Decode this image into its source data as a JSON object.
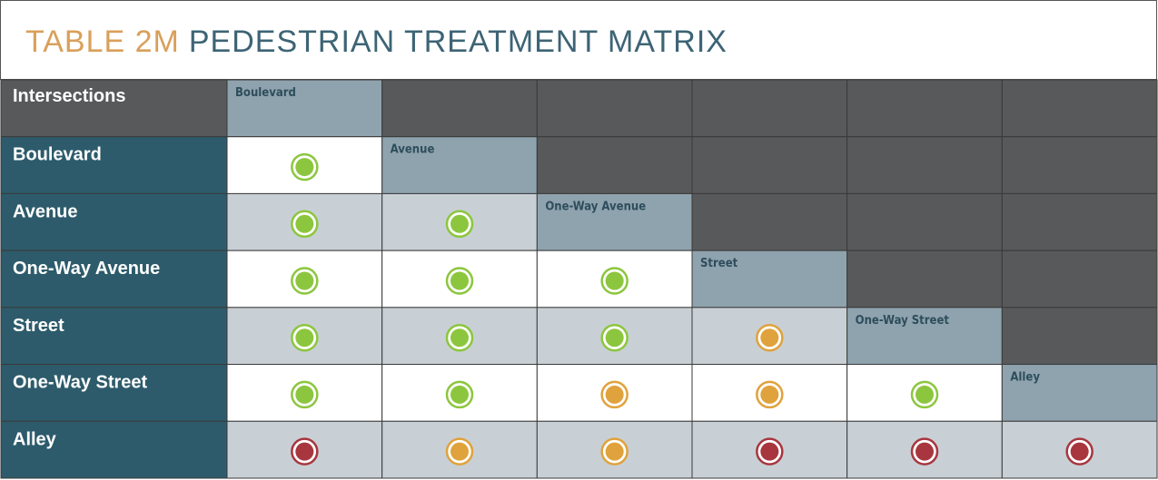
{
  "title": {
    "label": "TABLE 2M",
    "text": "PEDESTRIAN TREATMENT MATRIX"
  },
  "table": {
    "corner": "Intersections",
    "columns": [
      "Boulevard",
      "Avenue",
      "One-Way Avenue",
      "Street",
      "One-Way Street",
      "Alley"
    ],
    "rows": [
      {
        "label": "Boulevard",
        "cells": [
          "#8cc63e"
        ]
      },
      {
        "label": "Avenue",
        "cells": [
          "#8cc63e",
          "#8cc63e"
        ]
      },
      {
        "label": "One-Way Avenue",
        "cells": [
          "#8cc63e",
          "#8cc63e",
          "#8cc63e"
        ]
      },
      {
        "label": "Street",
        "cells": [
          "#8cc63e",
          "#8cc63e",
          "#8cc63e",
          "#e0a23c"
        ]
      },
      {
        "label": "One-Way Street",
        "cells": [
          "#8cc63e",
          "#8cc63e",
          "#e0a23c",
          "#e0a23c",
          "#8cc63e"
        ]
      },
      {
        "label": "Alley",
        "cells": [
          "#a8363f",
          "#e0a23c",
          "#e0a23c",
          "#a8363f",
          "#a8363f",
          "#a8363f"
        ]
      }
    ]
  }
}
